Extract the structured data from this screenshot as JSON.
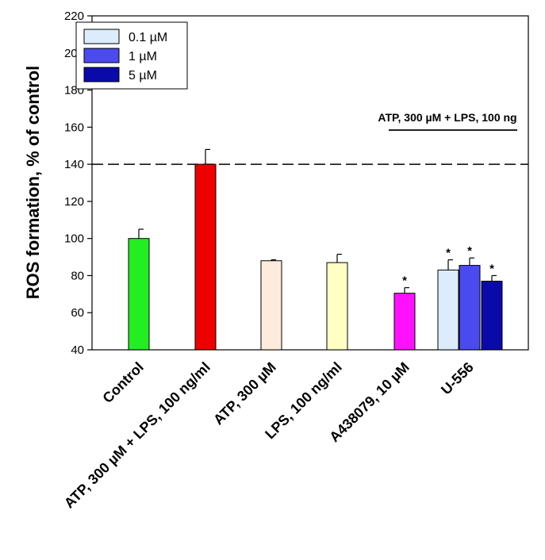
{
  "chart_data": {
    "type": "bar",
    "ylabel": "ROS formation, % of control",
    "ylim": [
      40,
      220
    ],
    "yticks": [
      40,
      60,
      80,
      100,
      120,
      140,
      160,
      180,
      200,
      220
    ],
    "reference_line": 140,
    "categories": [
      "Control",
      "ATP, 300 µM + LPS, 100 ng/ml",
      "ATP, 300 µM",
      "LPS, 100 ng/ml",
      "A438079, 10 µM",
      "U-556"
    ],
    "bars": [
      {
        "category": "Control",
        "value": 100,
        "error": 5,
        "color": "#22ee22",
        "significant": false
      },
      {
        "category": "ATP, 300 µM + LPS, 100 ng/ml",
        "value": 140,
        "error": 8,
        "color": "#ee0000",
        "significant": false
      },
      {
        "category": "ATP, 300 µM",
        "value": 88,
        "error": 0.5,
        "color": "#fdebdc",
        "significant": false
      },
      {
        "category": "LPS, 100 ng/ml",
        "value": 87,
        "error": 4.5,
        "color": "#ffffc4",
        "significant": false
      },
      {
        "category": "A438079, 10 µM",
        "value": 70.5,
        "error": 3,
        "color": "#ff11ff",
        "significant": true
      },
      {
        "category": "U-556",
        "series": "0.1 µM",
        "value": 83,
        "error": 5.5,
        "color": "#dcecfc",
        "significant": true
      },
      {
        "category": "U-556",
        "series": "1 µM",
        "value": 85.5,
        "error": 4,
        "color": "#4a4aee",
        "significant": true
      },
      {
        "category": "U-556",
        "series": "5 µM",
        "value": 77,
        "error": 3,
        "color": "#0a0aaa",
        "significant": true
      }
    ],
    "legend": {
      "placement": "top-left",
      "entries": [
        {
          "label": "0.1 µM",
          "color": "#dcecfc"
        },
        {
          "label": "1 µM",
          "color": "#4a4aee"
        },
        {
          "label": "5 µM",
          "color": "#0a0aaa"
        }
      ]
    },
    "annotation": "ATP, 300 µM + LPS, 100 ng",
    "significance_marker": "*"
  }
}
